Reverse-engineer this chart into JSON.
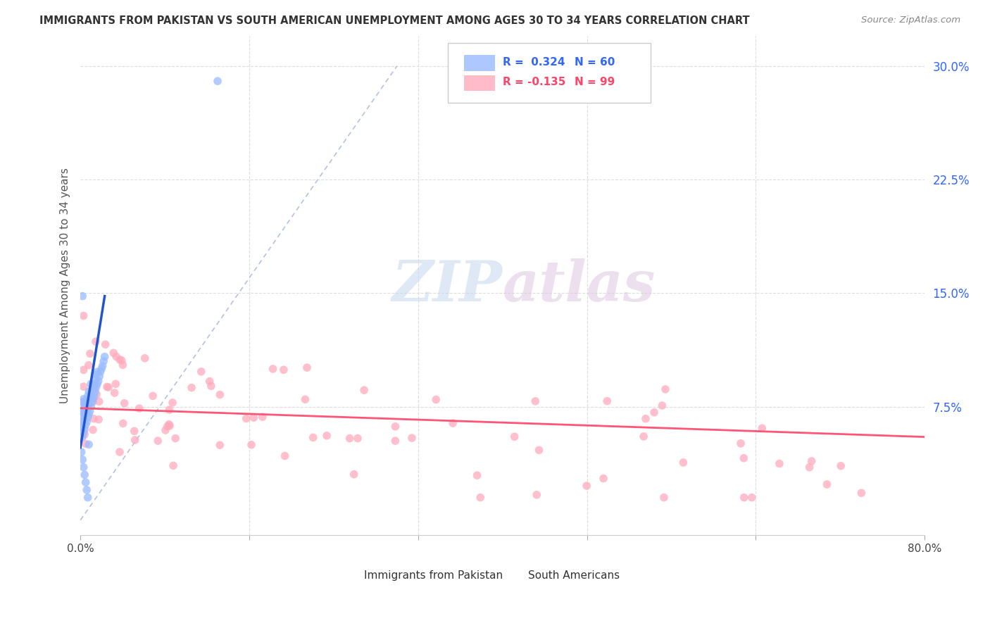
{
  "title": "IMMIGRANTS FROM PAKISTAN VS SOUTH AMERICAN UNEMPLOYMENT AMONG AGES 30 TO 34 YEARS CORRELATION CHART",
  "source": "Source: ZipAtlas.com",
  "ylabel": "Unemployment Among Ages 30 to 34 years",
  "xlim": [
    0.0,
    0.8
  ],
  "ylim": [
    -0.01,
    0.32
  ],
  "xticks": [
    0.0,
    0.16,
    0.32,
    0.48,
    0.64,
    0.8
  ],
  "xticklabels": [
    "0.0%",
    "",
    "",
    "",
    "",
    "80.0%"
  ],
  "yticks": [
    0.075,
    0.15,
    0.225,
    0.3
  ],
  "yticklabels": [
    "7.5%",
    "15.0%",
    "22.5%",
    "30.0%"
  ],
  "pakistan_R": 0.324,
  "pakistan_N": 60,
  "south_american_R": -0.135,
  "south_american_N": 99,
  "pakistan_color": "#99bbff",
  "south_american_color": "#ffaabb",
  "trendline_pakistan_color": "#2255cc",
  "trendline_south_american_color": "#ff5577",
  "diagonal_color": "#aabbdd",
  "background_color": "#ffffff",
  "watermark_zip": "ZIP",
  "watermark_atlas": "atlas",
  "legend_R1": "R =  0.324",
  "legend_N1": "N = 60",
  "legend_R2": "R = -0.135",
  "legend_N2": "N = 99"
}
